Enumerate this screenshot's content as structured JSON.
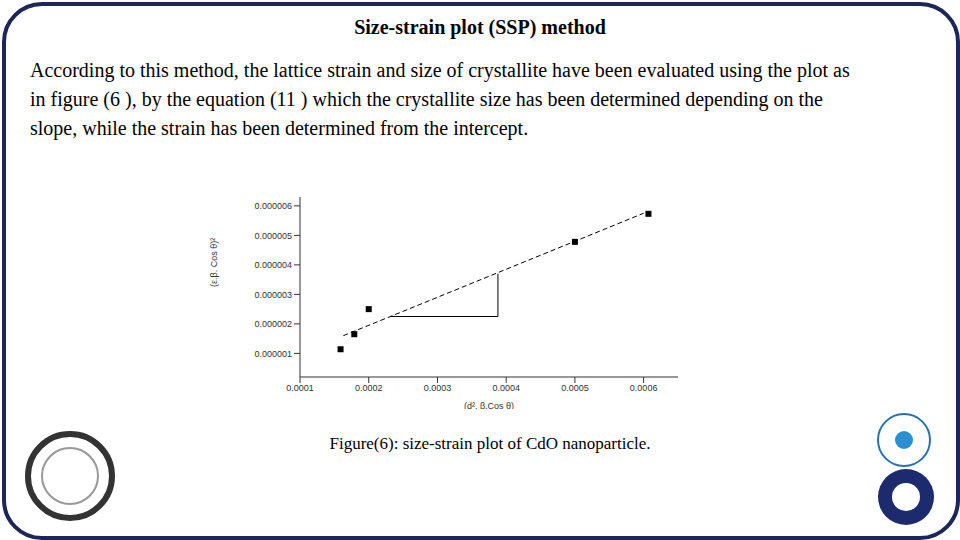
{
  "slide": {
    "title": "Size-strain plot (SSP) method",
    "text": "According to this method, the lattice strain and size of crystallite have been evaluated using the plot as in figure (6 ), by the equation (11 ) which the crystallite size has been determined depending on the slope, while the strain has been determined from the intercept.",
    "caption": "Figure(6): size-strain plot of CdO nanoparticle."
  },
  "chart_data": {
    "type": "scatter",
    "x_label": "(d². β.Cos θ)",
    "y_label": "(ε.β. Cos θ)²",
    "xlim": [
      0.0001,
      0.00065
    ],
    "xticks": [
      0.0001,
      0.0002,
      0.0003,
      0.0004,
      0.0005,
      0.0006
    ],
    "ylim": [
      2e-07,
      6.3e-06
    ],
    "yticks": [
      1e-06,
      2e-06,
      3e-06,
      4e-06,
      5e-06,
      6e-06
    ],
    "grid": false,
    "series": [
      {
        "type": "scatter",
        "marker": "square",
        "color": "#000000",
        "x": [
          0.000159,
          0.000179,
          0.0002,
          0.0005,
          0.000607
        ],
        "values": [
          1.14e-06,
          1.65e-06,
          2.5e-06,
          4.78e-06,
          5.73e-06
        ]
      },
      {
        "type": "line",
        "line_style": "dashed",
        "color": "#000000",
        "x": [
          0.000163,
          0.0006
        ],
        "values": [
          1.6e-06,
          5.75e-06
        ]
      },
      {
        "type": "line",
        "line_style": "solid",
        "color": "#000000",
        "x": [
          0.000232,
          0.000388,
          0.000388
        ],
        "values": [
          2.25e-06,
          2.25e-06,
          3.7e-06
        ]
      }
    ]
  }
}
